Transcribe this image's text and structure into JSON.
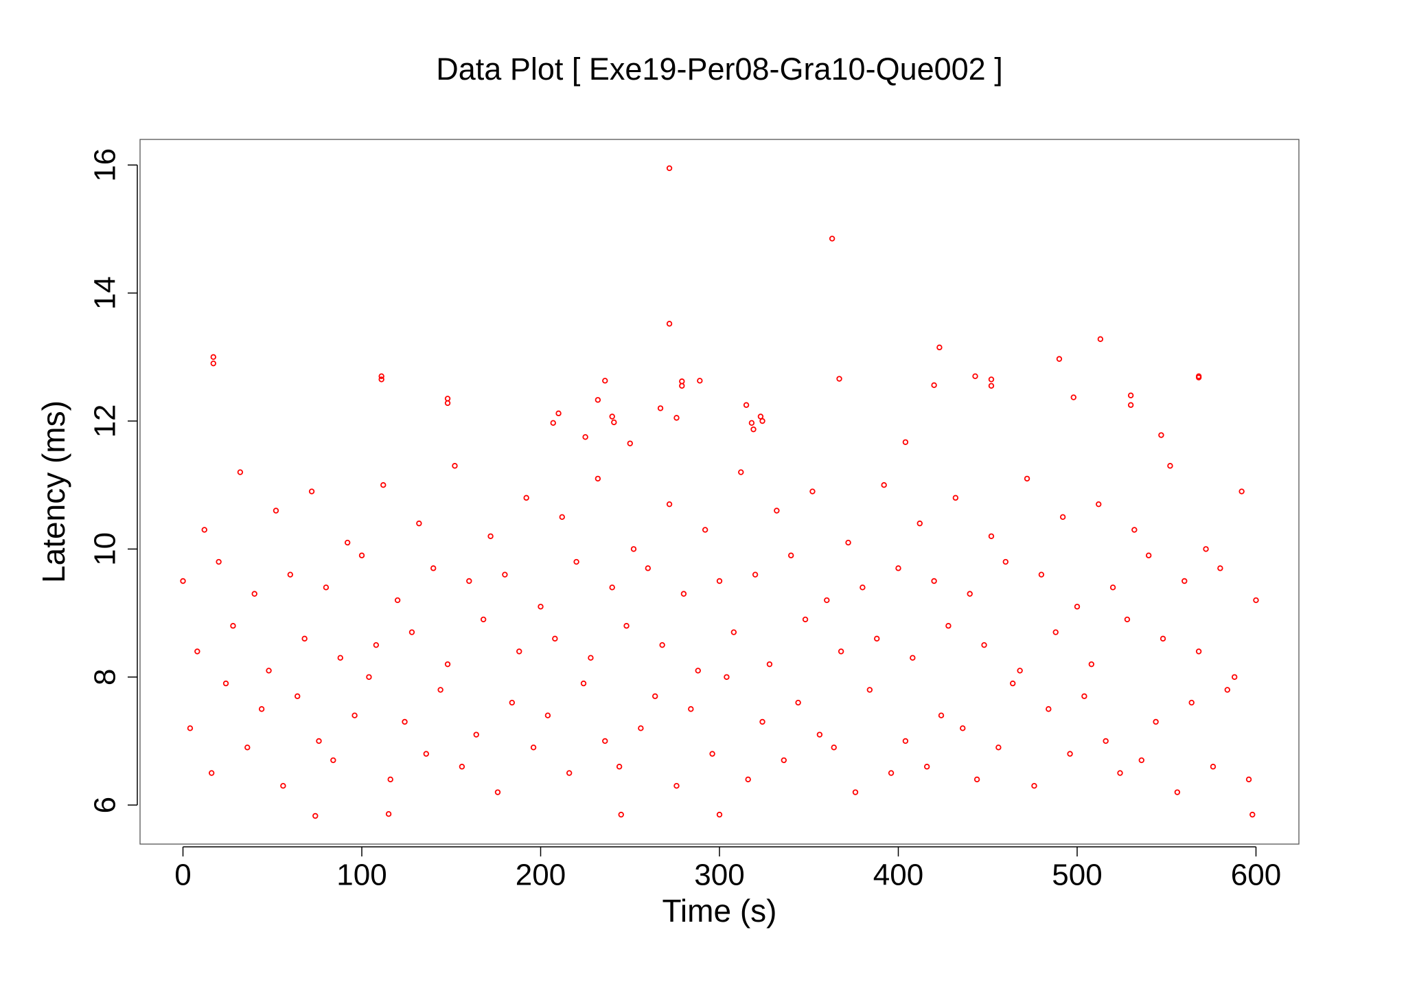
{
  "chart_data": {
    "type": "scatter",
    "title": "Data Plot [ Exe19-Per08-Gra10-Que002 ]",
    "x_label": "Time (s)",
    "y_label": "Latency (ms)",
    "xlim": [
      -24,
      624
    ],
    "ylim": [
      5.39,
      16.4
    ],
    "xticks": [
      0,
      100,
      200,
      300,
      400,
      500,
      600
    ],
    "yticks": [
      6,
      8,
      10,
      12,
      14,
      16
    ],
    "series": [
      {
        "color": "#ff0000",
        "x": [
          0,
          4,
          8,
          12,
          16,
          20,
          24,
          28,
          32,
          36,
          40,
          44,
          48,
          52,
          56,
          60,
          64,
          68,
          72,
          76,
          80,
          84,
          88,
          92,
          96,
          100,
          104,
          108,
          112,
          116,
          120,
          124,
          128,
          132,
          136,
          140,
          144,
          148,
          152,
          156,
          160,
          164,
          168,
          172,
          176,
          180,
          184,
          188,
          192,
          196,
          200,
          204,
          208,
          212,
          216,
          220,
          224,
          228,
          232,
          236,
          240,
          244,
          248,
          252,
          256,
          260,
          264,
          268,
          272,
          276,
          280,
          284,
          288,
          292,
          296,
          300,
          304,
          308,
          312,
          316,
          320,
          324,
          328,
          332,
          336,
          340,
          344,
          348,
          352,
          356,
          360,
          364,
          368,
          372,
          376,
          380,
          384,
          388,
          392,
          396,
          400,
          404,
          408,
          412,
          416,
          420,
          424,
          428,
          432,
          436,
          440,
          444,
          448,
          452,
          456,
          460,
          464,
          468,
          472,
          476,
          480,
          484,
          488,
          492,
          496,
          500,
          504,
          508,
          512,
          516,
          520,
          524,
          528,
          532,
          536,
          540,
          544,
          548,
          552,
          556,
          560,
          564,
          568,
          572,
          576,
          580,
          584,
          588,
          592,
          596,
          600,
          17,
          17,
          111,
          111,
          148,
          148,
          207,
          210,
          225,
          232,
          236,
          240,
          241,
          250,
          267,
          272,
          272,
          276,
          279,
          279,
          289,
          315,
          318,
          319,
          323,
          324,
          363,
          367,
          404,
          420,
          423,
          443,
          452,
          452,
          490,
          498,
          513,
          530,
          530,
          547,
          568,
          568,
          74,
          245,
          300,
          598,
          115
        ],
        "values": [
          9.5,
          7.2,
          8.4,
          10.3,
          6.5,
          9.8,
          7.9,
          8.8,
          11.2,
          6.9,
          9.3,
          7.5,
          8.1,
          10.6,
          6.3,
          9.6,
          7.7,
          8.6,
          10.9,
          7.0,
          9.4,
          6.7,
          8.3,
          10.1,
          7.4,
          9.9,
          8.0,
          8.5,
          11.0,
          6.4,
          9.2,
          7.3,
          8.7,
          10.4,
          6.8,
          9.7,
          7.8,
          8.2,
          11.3,
          6.6,
          9.5,
          7.1,
          8.9,
          10.2,
          6.2,
          9.6,
          7.6,
          8.4,
          10.8,
          6.9,
          9.1,
          7.4,
          8.6,
          10.5,
          6.5,
          9.8,
          7.9,
          8.3,
          11.1,
          7.0,
          9.4,
          6.6,
          8.8,
          10.0,
          7.2,
          9.7,
          7.7,
          8.5,
          10.7,
          6.3,
          9.3,
          7.5,
          8.1,
          10.3,
          6.8,
          9.5,
          8.0,
          8.7,
          11.2,
          6.4,
          9.6,
          7.3,
          8.2,
          10.6,
          6.7,
          9.9,
          7.6,
          8.9,
          10.9,
          7.1,
          9.2,
          6.9,
          8.4,
          10.1,
          6.2,
          9.4,
          7.8,
          8.6,
          11.0,
          6.5,
          9.7,
          7.0,
          8.3,
          10.4,
          6.6,
          9.5,
          7.4,
          8.8,
          10.8,
          7.2,
          9.3,
          6.4,
          8.5,
          10.2,
          6.9,
          9.8,
          7.9,
          8.1,
          11.1,
          6.3,
          9.6,
          7.5,
          8.7,
          10.5,
          6.8,
          9.1,
          7.7,
          8.2,
          10.7,
          7.0,
          9.4,
          6.5,
          8.9,
          10.3,
          6.7,
          9.9,
          7.3,
          8.6,
          11.3,
          6.2,
          9.5,
          7.6,
          8.4,
          10.0,
          6.6,
          9.7,
          7.8,
          8.0,
          10.9,
          6.4,
          9.2,
          13.0,
          12.9,
          12.7,
          12.65,
          12.35,
          12.28,
          11.97,
          12.12,
          11.75,
          12.33,
          12.63,
          12.07,
          11.98,
          11.65,
          12.2,
          15.95,
          13.52,
          12.05,
          12.62,
          12.55,
          12.63,
          12.25,
          11.97,
          11.87,
          12.07,
          12.0,
          14.85,
          12.66,
          11.67,
          12.56,
          13.15,
          12.7,
          12.65,
          12.55,
          12.97,
          12.37,
          13.28,
          12.4,
          12.25,
          11.78,
          12.7,
          12.68,
          5.83,
          5.85,
          5.85,
          5.85,
          5.86
        ]
      }
    ]
  }
}
